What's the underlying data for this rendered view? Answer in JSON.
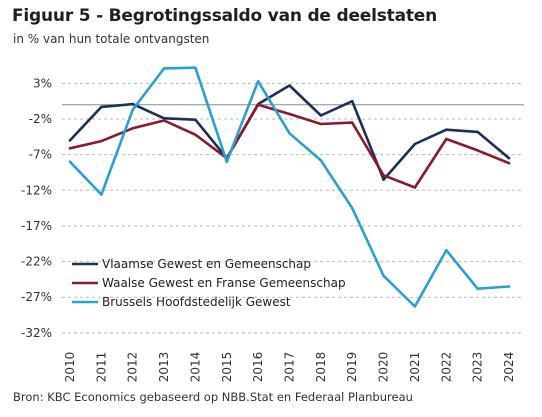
{
  "title": "Figuur 5 - Begrotingssaldo van de deelstaten",
  "subtitle": "in % van hun totale ontvangsten",
  "source": "Bron: KBC Economics gebaseerd op NBB.Stat en Federaal Planbureau",
  "chart_data": {
    "type": "line",
    "x": [
      "2010",
      "2011",
      "2012",
      "2013",
      "2014",
      "2015",
      "2016",
      "2017",
      "2018",
      "2019",
      "2020",
      "2021",
      "2022",
      "2023",
      "2024"
    ],
    "yticks": [
      "3%",
      "-2%",
      "-7%",
      "-12%",
      "-17%",
      "-22%",
      "-27%",
      "-32%"
    ],
    "ytick_values": [
      3,
      -2,
      -7,
      -12,
      -17,
      -22,
      -27,
      -32
    ],
    "ylim": [
      -33,
      6
    ],
    "grid": "dashed horizontal",
    "legend_position": "bottom-left",
    "series": [
      {
        "name": "Vlaamse Gewest en Gemeenschap",
        "color": "#1b2f57",
        "values": [
          -5.0,
          -0.3,
          0.1,
          -1.9,
          -2.1,
          -7.5,
          0.1,
          2.7,
          -1.5,
          0.5,
          -10.5,
          -5.5,
          -3.5,
          -3.8,
          -7.5
        ]
      },
      {
        "name": "Waalse Gewest en Franse Gemeenschap",
        "color": "#8b1a30",
        "values": [
          -6.1,
          -5.1,
          -3.3,
          -2.2,
          -4.2,
          -7.5,
          0.0,
          -1.3,
          -2.7,
          -2.5,
          -9.9,
          -11.6,
          -4.8,
          -6.4,
          -8.2
        ]
      },
      {
        "name": "Brussels Hoofdstedelijk Gewest",
        "color": "#2aa0d2",
        "values": [
          -8.0,
          -12.6,
          -0.7,
          5.1,
          5.2,
          -8.0,
          3.3,
          -4.0,
          -7.8,
          -14.5,
          -24.0,
          -28.3,
          -20.4,
          -25.8,
          -25.5
        ]
      }
    ]
  }
}
